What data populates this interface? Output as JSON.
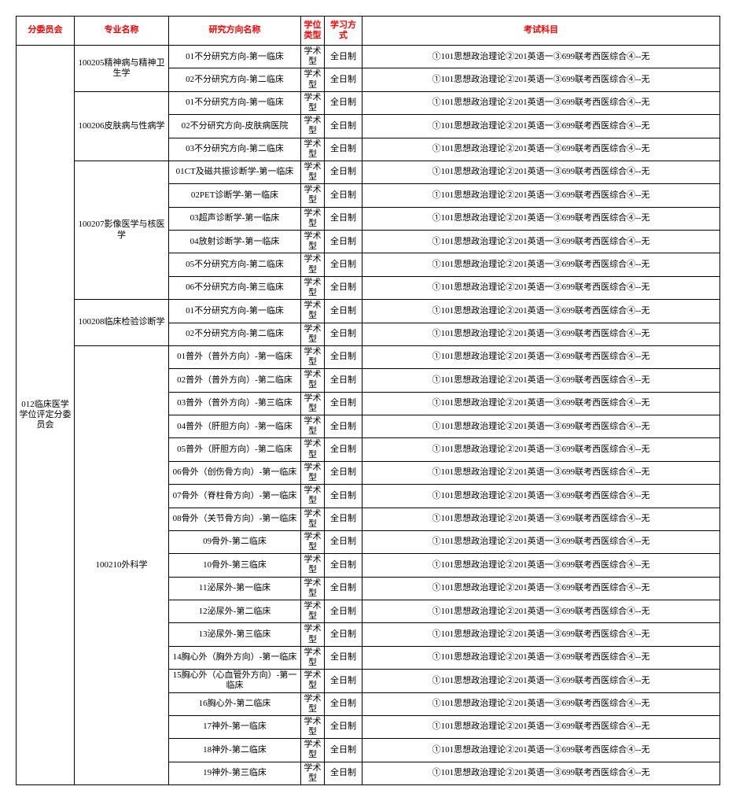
{
  "headers": {
    "committee": "分委员会",
    "major": "专业名称",
    "direction": "研究方向名称",
    "degree": "学位类型",
    "study": "学习方式",
    "subjects": "考试科目"
  },
  "committee_name": "012临床医学学位评定分委员会",
  "majors": [
    {
      "name": "100205精神病与精神卫生学",
      "rows": [
        {
          "dir": "01不分研究方向-第一临床",
          "deg": "学术型",
          "study": "全日制",
          "subj": "①101思想政治理论②201英语一③699联考西医综合④--无"
        },
        {
          "dir": "02不分研究方向-第二临床",
          "deg": "学术型",
          "study": "全日制",
          "subj": "①101思想政治理论②201英语一③699联考西医综合④--无"
        }
      ]
    },
    {
      "name": "100206皮肤病与性病学",
      "rows": [
        {
          "dir": "01不分研究方向-第一临床",
          "deg": "学术型",
          "study": "全日制",
          "subj": "①101思想政治理论②201英语一③699联考西医综合④--无"
        },
        {
          "dir": "02不分研究方向-皮肤病医院",
          "deg": "学术型",
          "study": "全日制",
          "subj": "①101思想政治理论②201英语一③699联考西医综合④--无"
        },
        {
          "dir": "03不分研究方向-第二临床",
          "deg": "学术型",
          "study": "全日制",
          "subj": "①101思想政治理论②201英语一③699联考西医综合④--无"
        }
      ]
    },
    {
      "name": "100207影像医学与核医学",
      "rows": [
        {
          "dir": "01CT及磁共振诊断学-第一临床",
          "deg": "学术型",
          "study": "全日制",
          "subj": "①101思想政治理论②201英语一③699联考西医综合④--无"
        },
        {
          "dir": "02PET诊断学-第一临床",
          "deg": "学术型",
          "study": "全日制",
          "subj": "①101思想政治理论②201英语一③699联考西医综合④--无"
        },
        {
          "dir": "03超声诊断学-第一临床",
          "deg": "学术型",
          "study": "全日制",
          "subj": "①101思想政治理论②201英语一③699联考西医综合④--无"
        },
        {
          "dir": "04放射诊断学-第一临床",
          "deg": "学术型",
          "study": "全日制",
          "subj": "①101思想政治理论②201英语一③699联考西医综合④--无"
        },
        {
          "dir": "05不分研究方向-第二临床",
          "deg": "学术型",
          "study": "全日制",
          "subj": "①101思想政治理论②201英语一③699联考西医综合④--无"
        },
        {
          "dir": "06不分研究方向-第三临床",
          "deg": "学术型",
          "study": "全日制",
          "subj": "①101思想政治理论②201英语一③699联考西医综合④--无"
        }
      ]
    },
    {
      "name": "100208临床检验诊断学",
      "rows": [
        {
          "dir": "01不分研究方向-第一临床",
          "deg": "学术型",
          "study": "全日制",
          "subj": "①101思想政治理论②201英语一③699联考西医综合④--无"
        },
        {
          "dir": "02不分研究方向-第二临床",
          "deg": "学术型",
          "study": "全日制",
          "subj": "①101思想政治理论②201英语一③699联考西医综合④--无"
        }
      ]
    },
    {
      "name": "100210外科学",
      "rows": [
        {
          "dir": "01普外（普外方向）-第一临床",
          "deg": "学术型",
          "study": "全日制",
          "subj": "①101思想政治理论②201英语一③699联考西医综合④--无"
        },
        {
          "dir": "02普外（普外方向）-第二临床",
          "deg": "学术型",
          "study": "全日制",
          "subj": "①101思想政治理论②201英语一③699联考西医综合④--无"
        },
        {
          "dir": "03普外（普外方向）-第三临床",
          "deg": "学术型",
          "study": "全日制",
          "subj": "①101思想政治理论②201英语一③699联考西医综合④--无"
        },
        {
          "dir": "04普外（肝胆方向）-第一临床",
          "deg": "学术型",
          "study": "全日制",
          "subj": "①101思想政治理论②201英语一③699联考西医综合④--无"
        },
        {
          "dir": "05普外（肝胆方向）-第二临床",
          "deg": "学术型",
          "study": "全日制",
          "subj": "①101思想政治理论②201英语一③699联考西医综合④--无"
        },
        {
          "dir": "06骨外（创伤骨方向）-第一临床",
          "deg": "学术型",
          "study": "全日制",
          "subj": "①101思想政治理论②201英语一③699联考西医综合④--无"
        },
        {
          "dir": "07骨外（脊柱骨方向）-第一临床",
          "deg": "学术型",
          "study": "全日制",
          "subj": "①101思想政治理论②201英语一③699联考西医综合④--无"
        },
        {
          "dir": "08骨外（关节骨方向）-第一临床",
          "deg": "学术型",
          "study": "全日制",
          "subj": "①101思想政治理论②201英语一③699联考西医综合④--无"
        },
        {
          "dir": "09骨外-第二临床",
          "deg": "学术型",
          "study": "全日制",
          "subj": "①101思想政治理论②201英语一③699联考西医综合④--无"
        },
        {
          "dir": "10骨外-第三临床",
          "deg": "学术型",
          "study": "全日制",
          "subj": "①101思想政治理论②201英语一③699联考西医综合④--无"
        },
        {
          "dir": "11泌尿外-第一临床",
          "deg": "学术型",
          "study": "全日制",
          "subj": "①101思想政治理论②201英语一③699联考西医综合④--无"
        },
        {
          "dir": "12泌尿外-第二临床",
          "deg": "学术型",
          "study": "全日制",
          "subj": "①101思想政治理论②201英语一③699联考西医综合④--无"
        },
        {
          "dir": "13泌尿外-第三临床",
          "deg": "学术型",
          "study": "全日制",
          "subj": "①101思想政治理论②201英语一③699联考西医综合④--无"
        },
        {
          "dir": "14胸心外（胸外方向）-第一临床",
          "deg": "学术型",
          "study": "全日制",
          "subj": "①101思想政治理论②201英语一③699联考西医综合④--无"
        },
        {
          "dir": "15胸心外（心血管外方向）-第一临床",
          "deg": "学术型",
          "study": "全日制",
          "subj": "①101思想政治理论②201英语一③699联考西医综合④--无"
        },
        {
          "dir": "16胸心外-第二临床",
          "deg": "学术型",
          "study": "全日制",
          "subj": "①101思想政治理论②201英语一③699联考西医综合④--无"
        },
        {
          "dir": "17神外-第一临床",
          "deg": "学术型",
          "study": "全日制",
          "subj": "①101思想政治理论②201英语一③699联考西医综合④--无"
        },
        {
          "dir": "18神外-第二临床",
          "deg": "学术型",
          "study": "全日制",
          "subj": "①101思想政治理论②201英语一③699联考西医综合④--无"
        },
        {
          "dir": "19神外-第三临床",
          "deg": "学术型",
          "study": "全日制",
          "subj": "①101思想政治理论②201英语一③699联考西医综合④--无"
        }
      ]
    }
  ]
}
